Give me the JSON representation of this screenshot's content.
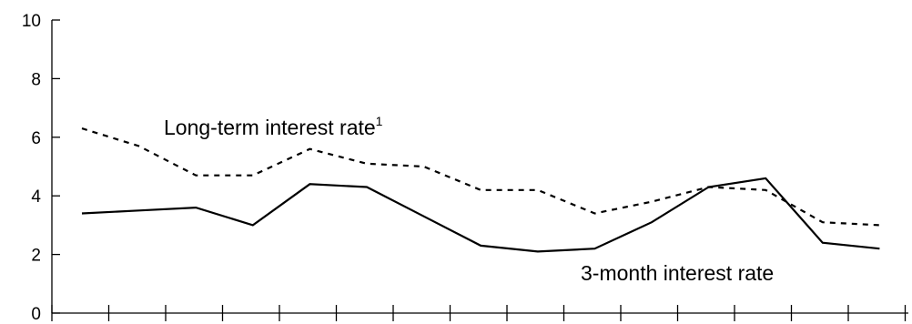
{
  "chart_data": {
    "type": "line",
    "title": "",
    "xlabel": "",
    "ylabel": "",
    "ylim": [
      0,
      10
    ],
    "yticks": [
      "0",
      "2",
      "4",
      "6",
      "8",
      "10"
    ],
    "x_count": 15,
    "grid": false,
    "series": [
      {
        "label_text": "Long-term interest rate",
        "label_footnote": "1",
        "style": "dashed",
        "values": [
          6.3,
          5.7,
          4.7,
          4.7,
          5.6,
          5.1,
          5.0,
          4.2,
          4.2,
          3.4,
          3.8,
          4.3,
          4.2,
          3.1,
          3.0
        ]
      },
      {
        "label_text": "3-month interest rate",
        "style": "solid",
        "values": [
          3.4,
          3.5,
          3.6,
          3.0,
          4.4,
          4.3,
          3.3,
          2.3,
          2.1,
          2.2,
          3.1,
          4.3,
          4.6,
          2.4,
          2.2
        ]
      }
    ]
  }
}
